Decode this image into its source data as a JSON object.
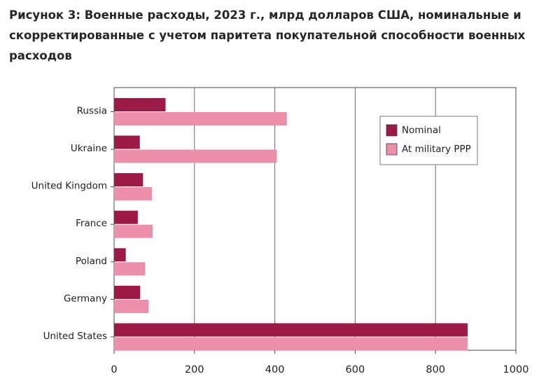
{
  "chart_data": {
    "type": "bar",
    "orientation": "horizontal",
    "title": "Рисунок 3: Военные расходы, 2023 г., млрд долларов США, номинальные и скорректированные с учетом паритета покупательной способности военных расходов",
    "categories": [
      "Russia",
      "Ukraine",
      "United Kingdom",
      "France",
      "Poland",
      "Germany",
      "United States"
    ],
    "series": [
      {
        "name": "Nominal",
        "color": "#9b1b45",
        "values": [
          128,
          64,
          72,
          59,
          29,
          65,
          880
        ]
      },
      {
        "name": "At military PPP",
        "color": "#ec8fa8",
        "values": [
          430,
          405,
          94,
          96,
          77,
          86,
          880
        ]
      }
    ],
    "xlim": [
      0,
      1000
    ],
    "xticks": [
      0,
      200,
      400,
      600,
      800,
      1000
    ],
    "xlabel": "",
    "ylabel": "",
    "grid": "vertical",
    "legend_position": "upper-right"
  }
}
